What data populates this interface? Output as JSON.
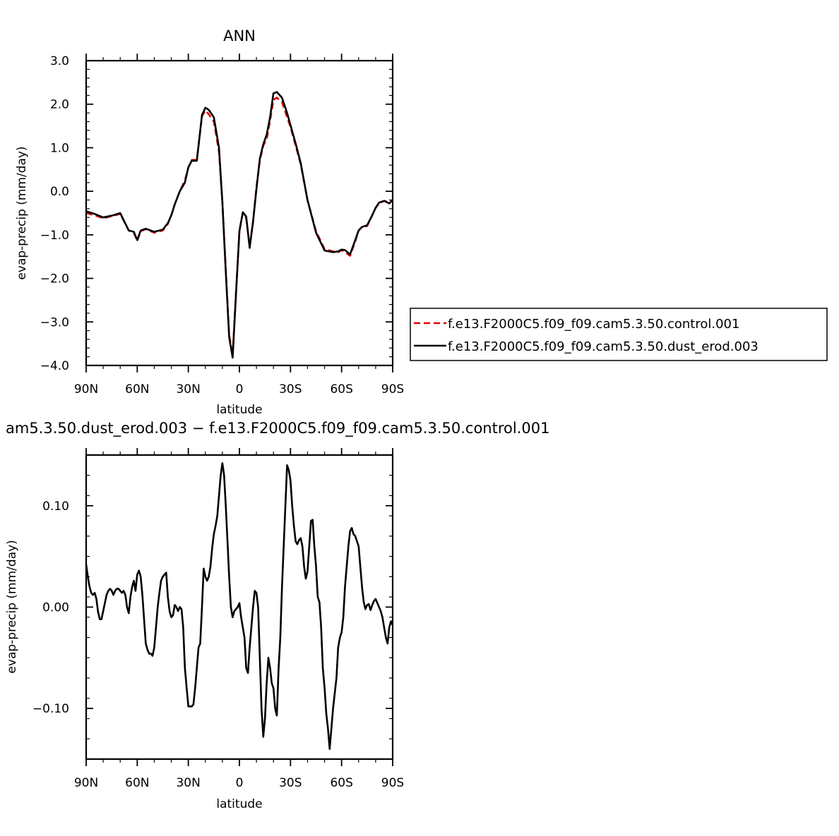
{
  "chart_data": [
    {
      "type": "line",
      "title": "ANN",
      "xlabel": "latitude",
      "ylabel": "evap-precip (mm/day)",
      "xlim": [
        90,
        -90
      ],
      "ylim": [
        -4.0,
        3.0
      ],
      "xticks": [
        90,
        60,
        30,
        0,
        -30,
        -60,
        -90
      ],
      "xtick_labels": [
        "90N",
        "60N",
        "30N",
        "0",
        "30S",
        "60S",
        "90S"
      ],
      "yticks": [
        -4.0,
        -3.0,
        -2.0,
        -1.0,
        0.0,
        1.0,
        2.0,
        3.0
      ],
      "ytick_labels": [
        "−4.0",
        "−3.0",
        "−2.0",
        "−1.0",
        "0.0",
        "1.0",
        "2.0",
        "3.0"
      ],
      "grid": false,
      "legend_position": "right",
      "x": [
        90,
        85,
        80,
        75,
        70,
        65,
        62,
        60,
        58,
        55,
        50,
        45,
        42,
        40,
        38,
        35,
        32,
        30,
        28,
        25,
        22,
        20,
        18,
        15,
        12,
        10,
        8,
        6,
        4,
        2,
        0,
        -2,
        -4,
        -6,
        -8,
        -10,
        -12,
        -14,
        -16,
        -18,
        -20,
        -22,
        -25,
        -28,
        -30,
        -33,
        -36,
        -40,
        -45,
        -50,
        -55,
        -58,
        -60,
        -62,
        -65,
        -68,
        -70,
        -72,
        -75,
        -78,
        -80,
        -82,
        -85,
        -88,
        -90
      ],
      "series": [
        {
          "name": "f.e13.F2000C5.f09_f09.cam5.3.50.control.001",
          "color": "#e00000",
          "dash": "dashed",
          "values": [
            -0.5,
            -0.55,
            -0.62,
            -0.57,
            -0.52,
            -0.9,
            -0.95,
            -1.14,
            -0.92,
            -0.87,
            -0.95,
            -0.9,
            -0.75,
            -0.55,
            -0.3,
            0.0,
            0.25,
            0.55,
            0.72,
            0.72,
            1.72,
            1.86,
            1.77,
            1.6,
            0.9,
            -0.25,
            -1.8,
            -3.3,
            -3.78,
            -2.3,
            -0.9,
            -0.5,
            -0.62,
            -1.25,
            -0.7,
            0.1,
            0.7,
            1.05,
            1.2,
            1.62,
            2.1,
            2.15,
            2.05,
            1.7,
            1.48,
            1.05,
            0.62,
            -0.2,
            -0.92,
            -1.33,
            -1.38,
            -1.4,
            -1.35,
            -1.4,
            -1.48,
            -1.15,
            -0.9,
            -0.82,
            -0.8,
            -0.55,
            -0.38,
            -0.28,
            -0.22,
            -0.25,
            -0.22
          ]
        },
        {
          "name": "f.e13.F2000C5.f09_f09.cam5.3.50.dust_erod.003",
          "color": "#000000",
          "dash": "solid",
          "values": [
            -0.46,
            -0.52,
            -0.6,
            -0.56,
            -0.5,
            -0.9,
            -0.93,
            -1.12,
            -0.9,
            -0.86,
            -0.93,
            -0.88,
            -0.73,
            -0.55,
            -0.3,
            0.0,
            0.2,
            0.55,
            0.7,
            0.7,
            1.75,
            1.92,
            1.87,
            1.7,
            1.0,
            -0.26,
            -1.85,
            -3.35,
            -3.82,
            -2.35,
            -0.92,
            -0.48,
            -0.58,
            -1.3,
            -0.7,
            0.05,
            0.75,
            1.08,
            1.3,
            1.7,
            2.25,
            2.28,
            2.15,
            1.8,
            1.52,
            1.1,
            0.65,
            -0.2,
            -0.95,
            -1.36,
            -1.4,
            -1.38,
            -1.34,
            -1.35,
            -1.45,
            -1.12,
            -0.9,
            -0.82,
            -0.78,
            -0.55,
            -0.38,
            -0.26,
            -0.22,
            -0.28,
            -0.2
          ]
        }
      ]
    },
    {
      "type": "line",
      "title": "am5.3.50.dust_erod.003 − f.e13.F2000C5.f09_f09.cam5.3.50.control.001",
      "xlabel": "latitude",
      "ylabel": "evap-precip (mm/day)",
      "xlim": [
        90,
        -90
      ],
      "ylim": [
        -0.15,
        0.15
      ],
      "xticks": [
        90,
        60,
        30,
        0,
        -30,
        -60,
        -90
      ],
      "xtick_labels": [
        "90N",
        "60N",
        "30N",
        "0",
        "30S",
        "60S",
        "90S"
      ],
      "yticks": [
        -0.1,
        0.0,
        0.1
      ],
      "ytick_labels": [
        "−0.10",
        "0.00",
        "0.10"
      ],
      "grid": false,
      "x": [
        90,
        89,
        88,
        87,
        86,
        85,
        84,
        83,
        82,
        81,
        80,
        79,
        78,
        77,
        76,
        75,
        74,
        73,
        72,
        71,
        70,
        69,
        68,
        67,
        66,
        65,
        64,
        63,
        62,
        61,
        60,
        59,
        58,
        57,
        56,
        55,
        54,
        53,
        52,
        51,
        50,
        49,
        48,
        47,
        46,
        45,
        44,
        43,
        42,
        41,
        40,
        39,
        38,
        37,
        36,
        35,
        34,
        33,
        32,
        31,
        30,
        29,
        28,
        27,
        26,
        25,
        24,
        23,
        22,
        21,
        20,
        19,
        18,
        17,
        16,
        15,
        14,
        13,
        12,
        11,
        10,
        9,
        8,
        7,
        6,
        5,
        4,
        3,
        2,
        1,
        0,
        -1,
        -2,
        -3,
        -4,
        -5,
        -6,
        -7,
        -8,
        -9,
        -10,
        -11,
        -12,
        -13,
        -14,
        -15,
        -16,
        -17,
        -18,
        -19,
        -20,
        -21,
        -22,
        -23,
        -24,
        -25,
        -26,
        -27,
        -28,
        -29,
        -30,
        -31,
        -32,
        -33,
        -34,
        -35,
        -36,
        -37,
        -38,
        -39,
        -40,
        -41,
        -42,
        -43,
        -44,
        -45,
        -46,
        -47,
        -48,
        -49,
        -50,
        -51,
        -52,
        -53,
        -54,
        -55,
        -56,
        -57,
        -58,
        -59,
        -60,
        -61,
        -62,
        -63,
        -64,
        -65,
        -66,
        -67,
        -68,
        -69,
        -70,
        -71,
        -72,
        -73,
        -74,
        -75,
        -76,
        -77,
        -78,
        -79,
        -80,
        -81,
        -82,
        -83,
        -84,
        -85,
        -86,
        -87,
        -88,
        -89,
        -90
      ],
      "series": [
        {
          "name": "",
          "color": "#000000",
          "dash": "solid",
          "values": [
            0.042,
            0.03,
            0.02,
            0.014,
            0.012,
            0.014,
            0.008,
            -0.005,
            -0.012,
            -0.012,
            -0.004,
            0.004,
            0.012,
            0.016,
            0.018,
            0.016,
            0.012,
            0.016,
            0.018,
            0.018,
            0.016,
            0.014,
            0.016,
            0.012,
            0.0,
            -0.006,
            0.01,
            0.02,
            0.026,
            0.016,
            0.032,
            0.036,
            0.03,
            0.012,
            -0.012,
            -0.036,
            -0.042,
            -0.046,
            -0.046,
            -0.048,
            -0.04,
            -0.02,
            0.0,
            0.014,
            0.026,
            0.03,
            0.032,
            0.034,
            0.01,
            -0.004,
            -0.01,
            -0.008,
            0.002,
            0.0,
            -0.004,
            0.0,
            -0.002,
            -0.02,
            -0.06,
            -0.08,
            -0.098,
            -0.098,
            -0.098,
            -0.096,
            -0.08,
            -0.06,
            -0.04,
            -0.036,
            0.0,
            0.038,
            0.03,
            0.026,
            0.03,
            0.04,
            0.058,
            0.072,
            0.08,
            0.09,
            0.11,
            0.13,
            0.142,
            0.13,
            0.1,
            0.065,
            0.03,
            0.0,
            -0.01,
            -0.004,
            -0.002,
            0.0,
            0.004,
            -0.01,
            -0.02,
            -0.03,
            -0.06,
            -0.065,
            -0.04,
            -0.02,
            0.0,
            0.016,
            0.014,
            0.0,
            -0.05,
            -0.1,
            -0.128,
            -0.11,
            -0.075,
            -0.05,
            -0.06,
            -0.075,
            -0.08,
            -0.1,
            -0.107,
            -0.06,
            -0.03,
            0.02,
            0.06,
            0.1,
            0.14,
            0.135,
            0.125,
            0.1,
            0.08,
            0.065,
            0.062,
            0.066,
            0.068,
            0.06,
            0.04,
            0.028,
            0.035,
            0.06,
            0.085,
            0.086,
            0.06,
            0.04,
            0.01,
            0.005,
            -0.02,
            -0.06,
            -0.08,
            -0.105,
            -0.12,
            -0.14,
            -0.12,
            -0.1,
            -0.085,
            -0.07,
            -0.04,
            -0.03,
            -0.025,
            -0.01,
            0.02,
            0.04,
            0.06,
            0.075,
            0.078,
            0.072,
            0.07,
            0.065,
            0.06,
            0.04,
            0.02,
            0.005,
            -0.002,
            0.002,
            0.003,
            -0.003,
            0.002,
            0.006,
            0.008,
            0.004,
            0.0,
            -0.004,
            -0.01,
            -0.02,
            -0.03,
            -0.036,
            -0.02,
            -0.014,
            -0.018
          ]
        }
      ]
    }
  ]
}
